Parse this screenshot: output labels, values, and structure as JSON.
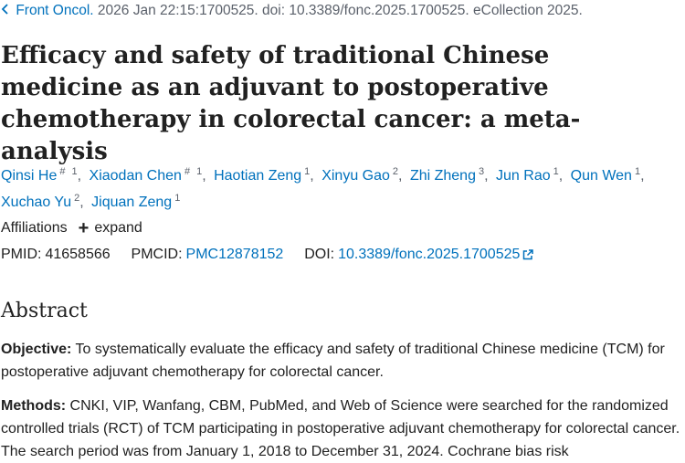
{
  "citation": {
    "journal": "Front Oncol.",
    "details": " 2026 Jan 22:15:1700525. doi: 10.3389/fonc.2025.1700525. eCollection 2025."
  },
  "title": "Efficacy and safety of traditional Chinese medicine as an adjuvant to postoperative chemotherapy in colorectal cancer: a meta-analysis",
  "authors": [
    {
      "name": "Qinsi He",
      "equal": "#",
      "aff": "1"
    },
    {
      "name": "Xiaodan Chen",
      "equal": "#",
      "aff": "1"
    },
    {
      "name": "Haotian Zeng",
      "equal": "",
      "aff": "1"
    },
    {
      "name": "Xinyu Gao",
      "equal": "",
      "aff": "2"
    },
    {
      "name": "Zhi Zheng",
      "equal": "",
      "aff": "3"
    },
    {
      "name": "Jun Rao",
      "equal": "",
      "aff": "1"
    },
    {
      "name": "Qun Wen",
      "equal": "",
      "aff": "1"
    },
    {
      "name": "Xuchao Yu",
      "equal": "",
      "aff": "2"
    },
    {
      "name": "Jiquan Zeng",
      "equal": "",
      "aff": "1"
    }
  ],
  "affiliations": {
    "label": "Affiliations",
    "expand": "expand"
  },
  "identifiers": {
    "pmid_label": "PMID:",
    "pmid": "41658566",
    "pmcid_label": "PMCID:",
    "pmcid": "PMC12878152",
    "doi_label": "DOI:",
    "doi": "10.3389/fonc.2025.1700525"
  },
  "abstract": {
    "heading": "Abstract",
    "objective_label": "Objective:",
    "objective": " To systematically evaluate the efficacy and safety of traditional Chinese medicine (TCM) for postoperative adjuvant chemotherapy for colorectal cancer.",
    "methods_label": "Methods:",
    "methods": " CNKI, VIP, Wanfang, CBM, PubMed, and Web of Science were searched for the randomized controlled trials (RCT) of TCM participating in postoperative adjuvant chemotherapy for colorectal cancer. The search period was from January 1, 2018 to December 31, 2024. Cochrane bias risk"
  },
  "colors": {
    "link": "#0071bc",
    "text": "#212121",
    "muted": "#5b616b"
  }
}
